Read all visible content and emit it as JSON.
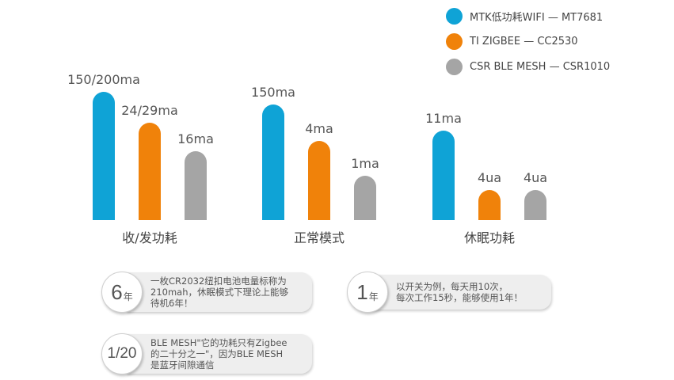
{
  "chart_data": {
    "type": "bar",
    "categories": [
      "收/发功耗",
      "正常模式",
      "休眠功耗"
    ],
    "series": [
      {
        "name": "MTK低功耗WIFI — MT7681",
        "color": "#0fa3d6",
        "values": [
          175,
          150,
          11
        ],
        "labels": [
          "150/200ma",
          "150ma",
          "11ma"
        ]
      },
      {
        "name": "TI ZIGBEE — CC2530",
        "color": "#f0820a",
        "values": [
          26.5,
          4,
          4
        ],
        "labels": [
          "24/29ma",
          "4ma",
          "4ua"
        ]
      },
      {
        "name": "CSR BLE MESH — CSR1010",
        "color": "#a5a5a5",
        "values": [
          16,
          1,
          4
        ],
        "labels": [
          "16ma",
          "1ma",
          "4ua"
        ]
      }
    ],
    "axis_scale": "not shown",
    "grid": false,
    "legend_position": "top-right"
  },
  "callouts": [
    {
      "big": "6",
      "small": "年",
      "text": "一枚CR2032纽扣电池电量标称为\n210mah，休眠模式下理论上能够\n待机6年！"
    },
    {
      "big": "1",
      "small": "年",
      "text": "以开关为例，每天用10次，\n每次工作15秒，能够使用1年！"
    },
    {
      "big": "1/20",
      "small": "",
      "text": "BLE MESH\"它的功耗只有Zigbee\n的二十分之一\"，因为BLE MESH\n是蓝牙间隙通信"
    }
  ]
}
